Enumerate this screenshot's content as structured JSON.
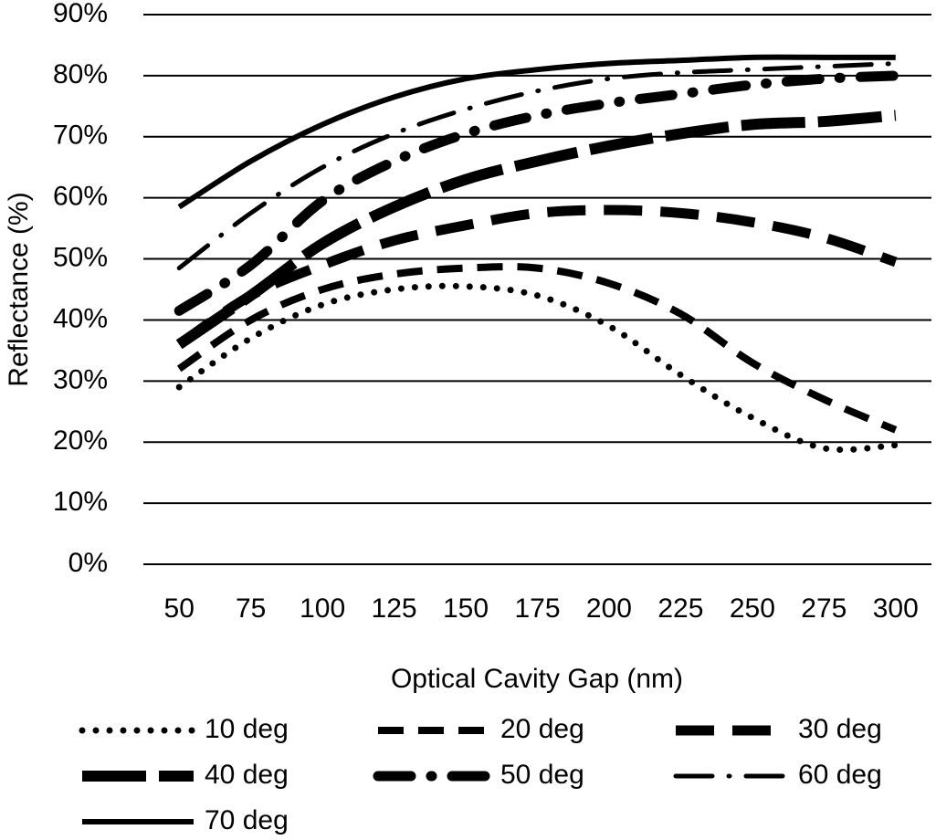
{
  "chart_data": {
    "type": "line",
    "x_label": "Optical Cavity Gap (nm)",
    "y_label": "Reflectance (%)",
    "x": [
      50,
      75,
      100,
      125,
      150,
      175,
      200,
      225,
      250,
      275,
      300
    ],
    "series": [
      {
        "name": "10 deg",
        "color": "#000000",
        "values": [
          29,
          37,
          42.5,
          45,
          45.5,
          44,
          39,
          31,
          24,
          19,
          19.5
        ]
      },
      {
        "name": "20 deg",
        "color": "#000000",
        "values": [
          32,
          40,
          45,
          47.5,
          48.5,
          48.5,
          46,
          41,
          33,
          27,
          22
        ]
      },
      {
        "name": "30 deg",
        "color": "#000000",
        "values": [
          36,
          44,
          49,
          53,
          55.5,
          57.5,
          58,
          57.5,
          56,
          53.5,
          49.5
        ]
      },
      {
        "name": "40 deg",
        "color": "#000000",
        "values": [
          36,
          44,
          52.5,
          58.5,
          63,
          66,
          68.5,
          70.5,
          72,
          72.5,
          73.5
        ]
      },
      {
        "name": "50 deg",
        "color": "#000000",
        "values": [
          41.5,
          49,
          59.5,
          66,
          70.5,
          73.5,
          75.5,
          77,
          78.5,
          79.5,
          80
        ]
      },
      {
        "name": "60 deg",
        "color": "#000000",
        "values": [
          48.5,
          57.5,
          65,
          70.5,
          74.5,
          77.5,
          79.5,
          80.5,
          81,
          81.5,
          82
        ]
      },
      {
        "name": "70 deg",
        "color": "#000000",
        "values": [
          58.5,
          66,
          72,
          76.5,
          79.5,
          81,
          82,
          82.5,
          83,
          83,
          83
        ]
      }
    ],
    "xlim": [
      37.5,
      312.5
    ],
    "xticks": [
      50,
      75,
      100,
      125,
      150,
      175,
      200,
      225,
      250,
      275,
      300
    ],
    "ylim": [
      0,
      90
    ],
    "yticks": [
      {
        "value": 0,
        "label": "0%"
      },
      {
        "value": 10,
        "label": "10%"
      },
      {
        "value": 20,
        "label": "20%"
      },
      {
        "value": 30,
        "label": "30%"
      },
      {
        "value": 40,
        "label": "40%"
      },
      {
        "value": 50,
        "label": "50%"
      },
      {
        "value": 60,
        "label": "60%"
      },
      {
        "value": 70,
        "label": "70%"
      },
      {
        "value": 80,
        "label": "80%"
      },
      {
        "value": 90,
        "label": "90%"
      }
    ],
    "grid": true,
    "legend": "bottom"
  }
}
